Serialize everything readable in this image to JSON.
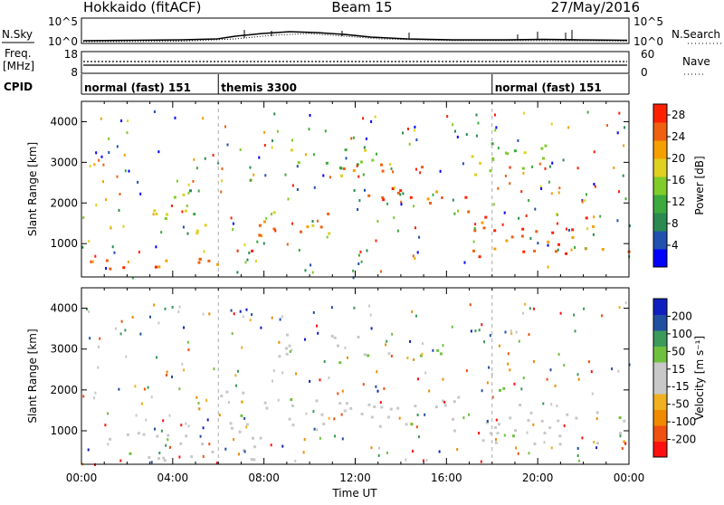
{
  "header": {
    "station": "Hokkaido (fitACF)",
    "beam": "Beam 15",
    "date": "27/May/2016"
  },
  "noise_panel": {
    "left_label": "N.Sky",
    "right_label": "N.Search",
    "left_ticks": [
      "10^5",
      "10^0"
    ],
    "right_ticks": [
      "10^5",
      "10^0"
    ]
  },
  "freq_panel": {
    "left_label_line1": "Freq.",
    "left_label_line2": "[MHz]",
    "right_label": "Nave",
    "left_ticks": [
      "18",
      "8"
    ],
    "right_ticks": [
      "60",
      "0"
    ]
  },
  "cpid": {
    "label": "CPID",
    "segments": [
      {
        "name": "normal (fast) 151",
        "start_hour": 0,
        "end_hour": 6
      },
      {
        "name": "themis 3300",
        "start_hour": 6,
        "end_hour": 18
      },
      {
        "name": "normal (fast) 151",
        "start_hour": 18,
        "end_hour": 24
      }
    ]
  },
  "chart_data": [
    {
      "type": "heatmap",
      "parameter": "power",
      "ylabel": "Slant Range [km]",
      "xlim_hours": [
        0,
        24
      ],
      "ylim": [
        180,
        4500
      ],
      "y_ticks": [
        1000,
        2000,
        3000,
        4000
      ],
      "colorbar": {
        "label": "Power [dB]",
        "range": [
          0,
          30
        ],
        "ticks": [
          4,
          8,
          12,
          16,
          20,
          24,
          28
        ],
        "colors": [
          "#0000ff",
          "#2050b0",
          "#2a8a50",
          "#3caa3c",
          "#7fcc2a",
          "#e0d020",
          "#f5a000",
          "#f06010",
          "#ff2000"
        ]
      },
      "features": [
        {
          "t0": 0.0,
          "t1": 5.0,
          "r0": 300,
          "r1": 700,
          "level": 27
        },
        {
          "t0": 5.0,
          "t1": 8.0,
          "r0": 450,
          "r1": 1000,
          "level": 22
        },
        {
          "t0": 7.0,
          "t1": 12.0,
          "r0": 1200,
          "r1": 1800,
          "level": 23
        },
        {
          "t0": 12.0,
          "t1": 17.0,
          "r0": 1800,
          "r1": 2400,
          "level": 27
        },
        {
          "t0": 11.0,
          "t1": 16.0,
          "r0": 2700,
          "r1": 3000,
          "level": 22
        },
        {
          "t0": 17.0,
          "t1": 24.0,
          "r0": 700,
          "r1": 1700,
          "level": 25
        },
        {
          "t0": 17.0,
          "t1": 20.5,
          "r0": 2500,
          "r1": 3500,
          "level": 15
        },
        {
          "t0": 3.0,
          "t1": 5.5,
          "r0": 1200,
          "r1": 2400,
          "level": 14
        },
        {
          "t0": 9.0,
          "t1": 13.0,
          "r0": 2800,
          "r1": 3400,
          "level": 13
        }
      ]
    },
    {
      "type": "heatmap",
      "parameter": "velocity",
      "xlabel": "Time UT",
      "ylabel": "Slant Range [km]",
      "xlim_hours": [
        0,
        24
      ],
      "ylim": [
        180,
        4500
      ],
      "y_ticks": [
        1000,
        2000,
        3000,
        4000
      ],
      "x_ticks": [
        "00:00",
        "04:00",
        "08:00",
        "12:00",
        "16:00",
        "20:00",
        "00:00"
      ],
      "colorbar": {
        "label": "Velocity [m s⁻¹]",
        "range": [
          -250,
          250
        ],
        "ticks": [
          200,
          100,
          50,
          15,
          -15,
          -50,
          -100,
          -200
        ],
        "colors": [
          "#ff1010",
          "#f05010",
          "#f08a00",
          "#f0b020",
          "#c8c8c8",
          "#c8c8c8",
          "#70c040",
          "#3c9a5a",
          "#2050a0",
          "#1020c0"
        ]
      },
      "features": [
        {
          "t0": 0.0,
          "t1": 8.0,
          "r0": 300,
          "r1": 1000,
          "level": 0
        },
        {
          "t0": 6.0,
          "t1": 17.0,
          "r0": 1000,
          "r1": 2000,
          "level": 0
        },
        {
          "t0": 11.0,
          "t1": 16.0,
          "r0": 2700,
          "r1": 3000,
          "level": 60
        },
        {
          "t0": 17.5,
          "t1": 24.0,
          "r0": 700,
          "r1": 1800,
          "level": 0
        },
        {
          "t0": 17.5,
          "t1": 19.0,
          "r0": 1700,
          "r1": 2100,
          "level": 60
        },
        {
          "t0": 8.5,
          "t1": 13.0,
          "r0": 2800,
          "r1": 3400,
          "level": -40
        }
      ]
    }
  ]
}
